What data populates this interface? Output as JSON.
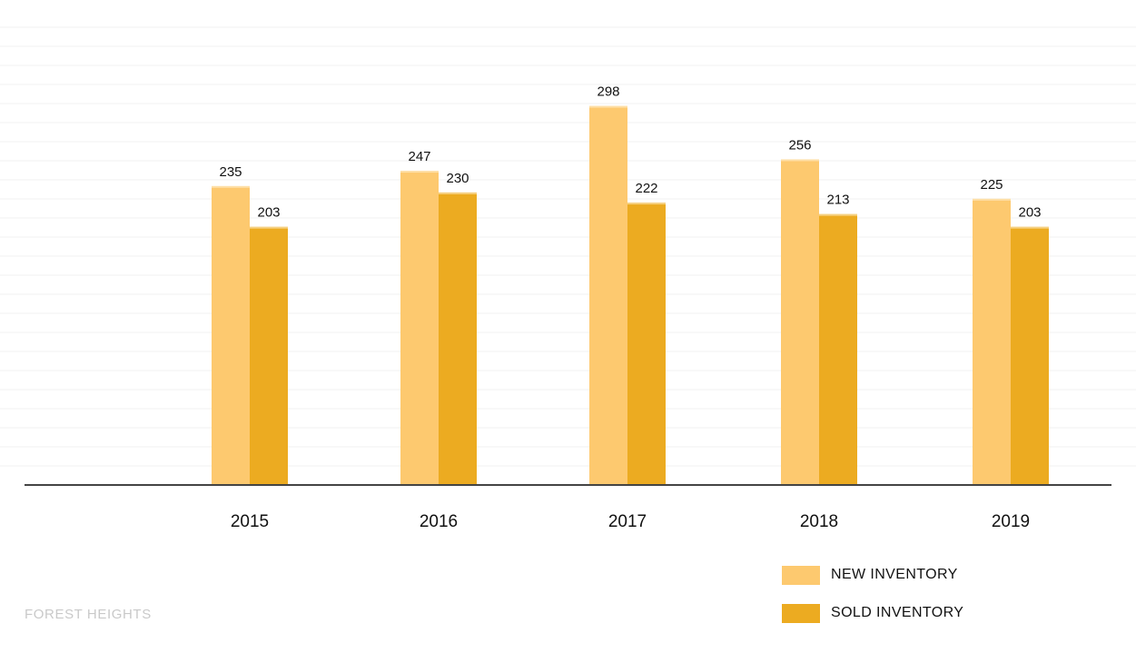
{
  "chart_data": {
    "type": "bar",
    "categories": [
      "2015",
      "2016",
      "2017",
      "2018",
      "2019"
    ],
    "series": [
      {
        "name": "NEW INVENTORY",
        "values": [
          235,
          247,
          298,
          256,
          225
        ],
        "color": "#fdc96f"
      },
      {
        "name": "SOLD INVENTORY",
        "values": [
          203,
          230,
          222,
          213,
          203
        ],
        "color": "#ecab21"
      }
    ],
    "title": "",
    "xlabel": "",
    "ylabel": "",
    "ylim": [
      0,
      372
    ],
    "grid": true,
    "legend_position": "bottom-right",
    "data_labels": true
  },
  "footer": {
    "brand": "FOREST HEIGHTS"
  },
  "colors": {
    "gridline": "#f2f2f2",
    "axis": "#444444",
    "label_text": "#111111",
    "bar_highlight": "#fff1d3"
  }
}
